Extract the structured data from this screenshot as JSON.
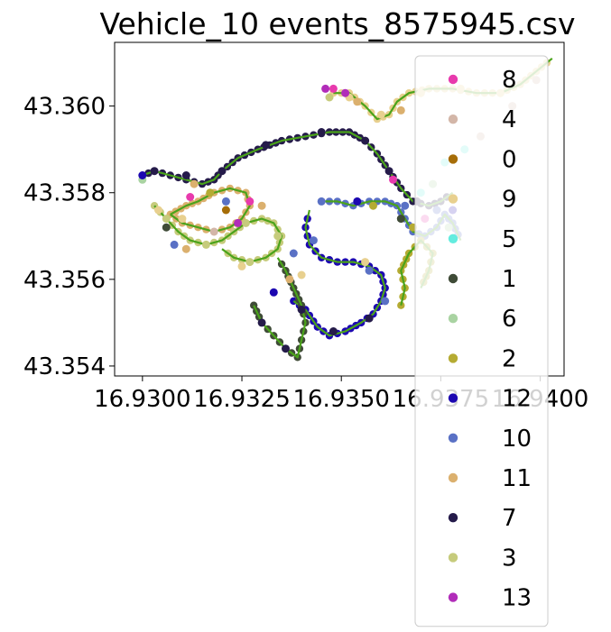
{
  "chart_data": {
    "type": "scatter",
    "title": "Vehicle_10 events_8575945.csv",
    "xlabel": "",
    "ylabel": "",
    "xlim": [
      16.9293,
      16.9406
    ],
    "ylim": [
      43.35377,
      43.36147
    ],
    "x_ticks": [
      16.93,
      16.9325,
      16.935,
      16.9375,
      16.94
    ],
    "x_tick_labels": [
      "16.9300",
      "16.9325",
      "16.9350",
      "16.9375",
      "16.9400"
    ],
    "y_ticks": [
      43.354,
      43.356,
      43.358,
      43.36
    ],
    "y_tick_labels": [
      "43.354",
      "43.356",
      "43.358",
      "43.360"
    ],
    "grid": false,
    "legend_placement": "right, extending below the plot",
    "route_line_color": "#4aa31a",
    "series": [
      {
        "name": "8",
        "color": "#e83aad"
      },
      {
        "name": "4",
        "color": "#d3b6a8"
      },
      {
        "name": "0",
        "color": "#a66d08"
      },
      {
        "name": "9",
        "color": "#e8d08f"
      },
      {
        "name": "5",
        "color": "#63ecdf"
      },
      {
        "name": "1",
        "color": "#3f4b37"
      },
      {
        "name": "6",
        "color": "#a9d3a2"
      },
      {
        "name": "2",
        "color": "#b5ab33"
      },
      {
        "name": "12",
        "color": "#1c07b1"
      },
      {
        "name": "10",
        "color": "#5a71c5"
      },
      {
        "name": "11",
        "color": "#dbb06e"
      },
      {
        "name": "7",
        "color": "#251b4a"
      },
      {
        "name": "3",
        "color": "#c6cb7c"
      },
      {
        "name": "13",
        "color": "#b12cb9"
      }
    ],
    "route": [
      {
        "name": "11",
        "points": [
          [
            16.9307,
            43.3575
          ],
          [
            16.9311,
            43.3577
          ],
          [
            16.9314,
            43.3578
          ],
          [
            16.9318,
            43.358
          ],
          [
            16.9322,
            43.3581
          ],
          [
            16.9326,
            43.358
          ],
          [
            16.9327,
            43.3577
          ],
          [
            16.9325,
            43.3574
          ],
          [
            16.9322,
            43.3572
          ],
          [
            16.9318,
            43.3571
          ],
          [
            16.9314,
            43.3572
          ],
          [
            16.931,
            43.3573
          ],
          [
            16.9307,
            43.3575
          ]
        ]
      },
      {
        "name": "3",
        "points": [
          [
            16.9303,
            43.3577
          ],
          [
            16.9306,
            43.3574
          ],
          [
            16.9309,
            43.3571
          ],
          [
            16.9312,
            43.3569
          ],
          [
            16.9316,
            43.3568
          ],
          [
            16.932,
            43.3569
          ],
          [
            16.9323,
            43.3571
          ],
          [
            16.9326,
            43.3573
          ],
          [
            16.933,
            43.3574
          ],
          [
            16.9333,
            43.3573
          ],
          [
            16.9335,
            43.357
          ],
          [
            16.9334,
            43.3567
          ],
          [
            16.9331,
            43.3565
          ],
          [
            16.9327,
            43.3564
          ],
          [
            16.9323,
            43.3565
          ],
          [
            16.932,
            43.3567
          ]
        ]
      },
      {
        "name": "7",
        "points": [
          [
            16.93,
            43.3584
          ],
          [
            16.9303,
            43.3585
          ],
          [
            16.9307,
            43.3584
          ],
          [
            16.9311,
            43.3583
          ],
          [
            16.9315,
            43.3582
          ],
          [
            16.9318,
            43.3583
          ],
          [
            16.932,
            43.3585
          ],
          [
            16.9324,
            43.3588
          ],
          [
            16.9329,
            43.359
          ],
          [
            16.9335,
            43.3592
          ],
          [
            16.9341,
            43.3593
          ],
          [
            16.9347,
            43.3594
          ],
          [
            16.9352,
            43.3594
          ],
          [
            16.9356,
            43.3592
          ],
          [
            16.9359,
            43.3589
          ],
          [
            16.9362,
            43.3585
          ],
          [
            16.9365,
            43.3581
          ],
          [
            16.9368,
            43.3578
          ],
          [
            16.9372,
            43.3577
          ],
          [
            16.9375,
            43.3578
          ],
          [
            16.9378,
            43.358
          ]
        ]
      },
      {
        "name": "9",
        "points": [
          [
            16.9348,
            43.3603
          ],
          [
            16.9352,
            43.3603
          ],
          [
            16.9356,
            43.36
          ],
          [
            16.9359,
            43.3597
          ],
          [
            16.9362,
            43.3598
          ],
          [
            16.9364,
            43.3601
          ],
          [
            16.9367,
            43.3603
          ],
          [
            16.9372,
            43.3604
          ],
          [
            16.9378,
            43.3604
          ],
          [
            16.9384,
            43.3603
          ],
          [
            16.939,
            43.3603
          ],
          [
            16.9395,
            43.3605
          ],
          [
            16.9399,
            43.3608
          ],
          [
            16.9403,
            43.3611
          ]
        ]
      },
      {
        "name": "10",
        "points": [
          [
            16.9345,
            43.3578
          ],
          [
            16.9349,
            43.3578
          ],
          [
            16.9353,
            43.3577
          ],
          [
            16.9357,
            43.3578
          ],
          [
            16.9361,
            43.3578
          ],
          [
            16.9364,
            43.3577
          ],
          [
            16.9366,
            43.3574
          ],
          [
            16.9368,
            43.3571
          ],
          [
            16.9371,
            43.357
          ],
          [
            16.9374,
            43.3572
          ],
          [
            16.9376,
            43.3575
          ],
          [
            16.9378,
            43.3573
          ],
          [
            16.938,
            43.3569
          ]
        ]
      },
      {
        "name": "12",
        "points": [
          [
            16.9338,
            43.3555
          ],
          [
            16.9341,
            43.3553
          ],
          [
            16.9344,
            43.3549
          ],
          [
            16.9347,
            43.3547
          ],
          [
            16.9351,
            43.3548
          ],
          [
            16.9355,
            43.355
          ],
          [
            16.9358,
            43.3552
          ],
          [
            16.936,
            43.3555
          ],
          [
            16.9361,
            43.3558
          ],
          [
            16.936,
            43.3561
          ],
          [
            16.9357,
            43.3563
          ],
          [
            16.9353,
            43.3564
          ],
          [
            16.9349,
            43.3564
          ],
          [
            16.9345,
            43.3565
          ],
          [
            16.9342,
            43.3568
          ],
          [
            16.9341,
            43.3572
          ],
          [
            16.9342,
            43.3576
          ]
        ]
      },
      {
        "name": "1",
        "points": [
          [
            16.9328,
            43.3554
          ],
          [
            16.933,
            43.355
          ],
          [
            16.9333,
            43.3547
          ],
          [
            16.9336,
            43.3544
          ],
          [
            16.9339,
            43.3542
          ],
          [
            16.934,
            43.3546
          ],
          [
            16.9341,
            43.355
          ],
          [
            16.934,
            43.3554
          ],
          [
            16.9338,
            43.3558
          ],
          [
            16.9336,
            43.3562
          ],
          [
            16.9334,
            43.3565
          ]
        ]
      },
      {
        "name": "2",
        "points": [
          [
            16.9365,
            43.3554
          ],
          [
            16.9366,
            43.3558
          ],
          [
            16.9365,
            43.3562
          ],
          [
            16.9367,
            43.3566
          ],
          [
            16.937,
            43.3569
          ],
          [
            16.9373,
            43.3566
          ],
          [
            16.9372,
            43.3562
          ],
          [
            16.937,
            43.3558
          ]
        ]
      }
    ],
    "points": [
      {
        "series": "8",
        "xy": [
          [
            16.9348,
            43.3604
          ],
          [
            16.9327,
            43.3578
          ],
          [
            16.9312,
            43.3579
          ],
          [
            16.9363,
            43.3583
          ],
          [
            16.9371,
            43.3574
          ]
        ]
      },
      {
        "series": "4",
        "xy": [
          [
            16.9385,
            43.3593
          ],
          [
            16.9393,
            43.36
          ],
          [
            16.9318,
            43.3571
          ],
          [
            16.9399,
            43.3606
          ]
        ]
      },
      {
        "name": "0",
        "series": "0",
        "xy": [
          [
            16.9321,
            43.3576
          ]
        ]
      },
      {
        "series": "9",
        "xy": [
          [
            16.9352,
            43.3602
          ],
          [
            16.936,
            43.3598
          ],
          [
            16.937,
            43.3603
          ],
          [
            16.938,
            43.3604
          ],
          [
            16.939,
            43.3603
          ],
          [
            16.9304,
            43.3576
          ],
          [
            16.931,
            43.3574
          ],
          [
            16.9325,
            43.3563
          ],
          [
            16.934,
            43.3561
          ],
          [
            16.9356,
            43.3564
          ]
        ]
      },
      {
        "series": "5",
        "xy": [
          [
            16.9376,
            43.3587
          ],
          [
            16.9381,
            43.359
          ],
          [
            16.937,
            43.358
          ]
        ]
      },
      {
        "series": "1",
        "xy": [
          [
            16.9365,
            43.3574
          ],
          [
            16.9306,
            43.3572
          ]
        ]
      },
      {
        "series": "6",
        "xy": [
          [
            16.9373,
            43.3582
          ],
          [
            16.9377,
            43.3572
          ],
          [
            16.93,
            43.3583
          ]
        ]
      },
      {
        "series": "2",
        "xy": [
          [
            16.9317,
            43.358
          ],
          [
            16.9368,
            43.3572
          ],
          [
            16.9358,
            43.3577
          ]
        ]
      },
      {
        "series": "12",
        "xy": [
          [
            16.93,
            43.3584
          ],
          [
            16.9333,
            43.3557
          ],
          [
            16.9354,
            43.3578
          ],
          [
            16.9378,
            43.3576
          ]
        ]
      },
      {
        "series": "10",
        "xy": [
          [
            16.9338,
            43.3566
          ],
          [
            16.9345,
            43.3578
          ],
          [
            16.9357,
            43.3562
          ],
          [
            16.9361,
            43.3555
          ],
          [
            16.9374,
            43.3576
          ],
          [
            16.9321,
            43.3578
          ],
          [
            16.9308,
            43.3568
          ],
          [
            16.9343,
            43.3569
          ],
          [
            16.9366,
            43.3577
          ]
        ]
      },
      {
        "series": "11",
        "xy": [
          [
            16.9311,
            43.3567
          ],
          [
            16.933,
            43.3577
          ],
          [
            16.9313,
            43.3582
          ],
          [
            16.9354,
            43.3601
          ],
          [
            16.9337,
            43.356
          ],
          [
            16.9365,
            43.3599
          ]
        ]
      },
      {
        "series": "7",
        "xy": [
          [
            16.9303,
            43.3585
          ],
          [
            16.9311,
            43.3584
          ],
          [
            16.932,
            43.3585
          ],
          [
            16.9331,
            43.3591
          ],
          [
            16.9345,
            43.3594
          ],
          [
            16.9356,
            43.3592
          ],
          [
            16.9362,
            43.3585
          ],
          [
            16.9369,
            43.3578
          ],
          [
            16.933,
            43.355
          ],
          [
            16.9336,
            43.3544
          ],
          [
            16.934,
            43.3553
          ],
          [
            16.9348,
            43.3548
          ],
          [
            16.9357,
            43.3551
          ]
        ]
      },
      {
        "series": "3",
        "xy": [
          [
            16.9306,
            43.3574
          ],
          [
            16.9316,
            43.3568
          ],
          [
            16.9326,
            43.3573
          ],
          [
            16.9334,
            43.357
          ],
          [
            16.9327,
            43.3564
          ],
          [
            16.9347,
            43.3602
          ]
        ]
      },
      {
        "series": "13",
        "xy": [
          [
            16.9346,
            43.3604
          ],
          [
            16.9324,
            43.3573
          ],
          [
            16.9351,
            43.3603
          ]
        ]
      }
    ]
  }
}
